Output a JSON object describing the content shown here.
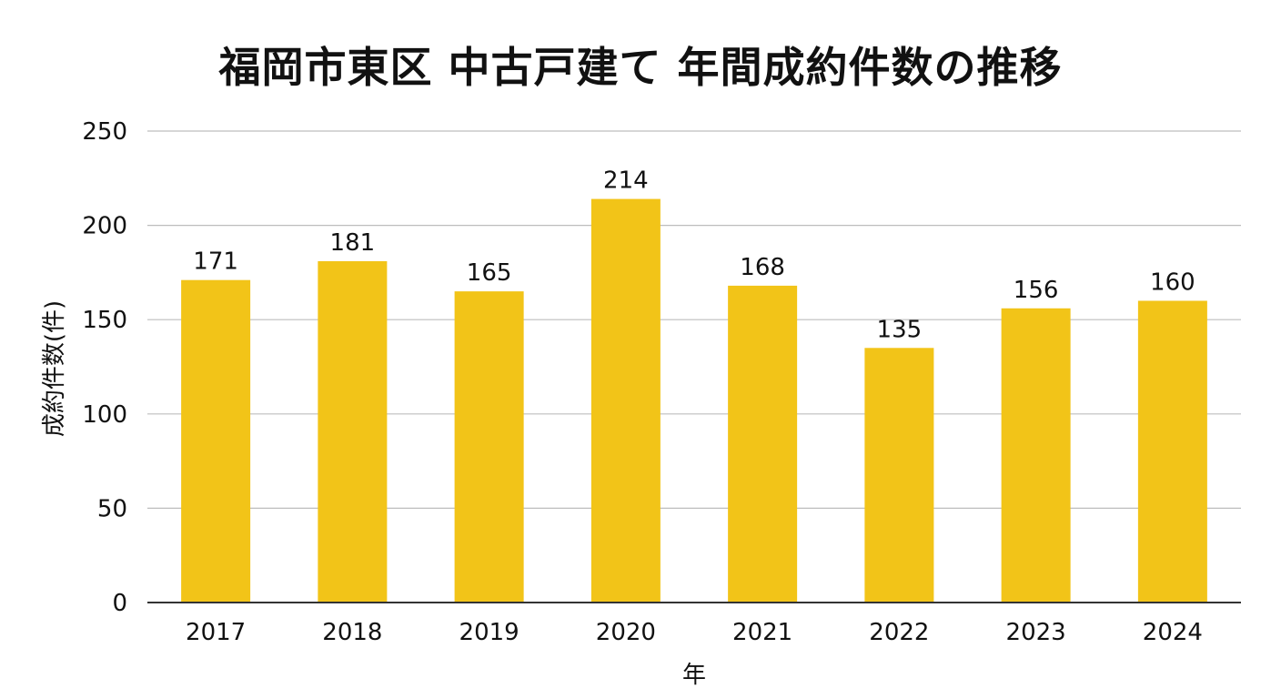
{
  "chart_data": {
    "type": "bar",
    "title": "福岡市東区 中古戸建て 年間成約件数の推移",
    "xlabel": "年",
    "ylabel": "成約件数(件)",
    "categories": [
      "2017",
      "2018",
      "2019",
      "2020",
      "2021",
      "2022",
      "2023",
      "2024"
    ],
    "values": [
      171,
      181,
      165,
      214,
      168,
      135,
      156,
      160
    ],
    "data_labels": [
      "171",
      "181",
      "165",
      "214",
      "168",
      "135",
      "156",
      "160"
    ],
    "ylim": [
      0,
      250
    ],
    "yticks": [
      0,
      50,
      100,
      150,
      200,
      250
    ],
    "ytick_labels": [
      "0",
      "50",
      "100",
      "150",
      "200",
      "250"
    ],
    "grid": true,
    "legend": "none",
    "colors": {
      "bar": "#F2C418",
      "grid": "#BDBDBD",
      "axis": "#333333",
      "text": "#111111"
    }
  }
}
